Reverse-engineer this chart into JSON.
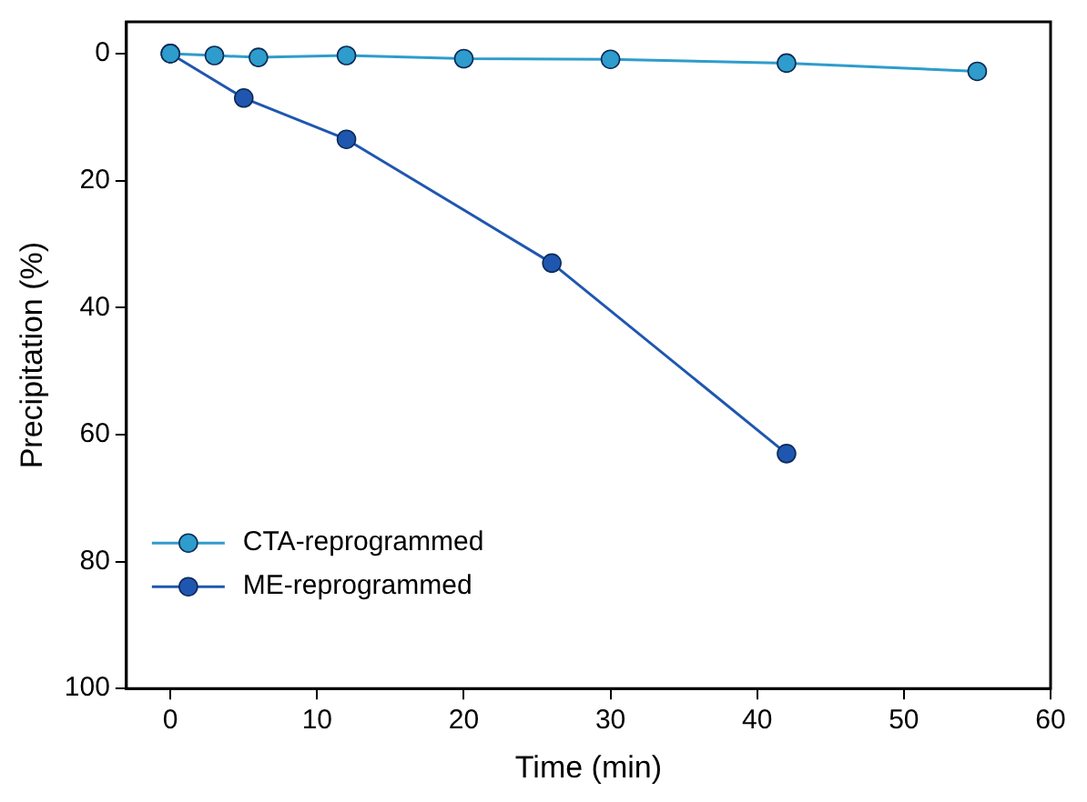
{
  "chart_data": {
    "type": "line",
    "xlabel": "Time (min)",
    "ylabel": "Precipitation (%)",
    "xlim": [
      -3,
      60
    ],
    "xticks": [
      0,
      10,
      20,
      30,
      40,
      50,
      60
    ],
    "ylim": [
      100,
      -5
    ],
    "yticks": [
      0,
      20,
      40,
      60,
      80,
      100
    ],
    "grid": false,
    "legend": "bottom left",
    "marker": "circle",
    "line_style": "solid",
    "series": [
      {
        "name": "CTA-reprogrammed",
        "color": "#2e9ccc",
        "x": [
          0,
          3,
          6,
          12,
          20,
          30,
          42,
          55
        ],
        "values": [
          0,
          0.3,
          0.6,
          0.3,
          0.8,
          0.9,
          1.5,
          2.8
        ]
      },
      {
        "name": "ME-reprogrammed",
        "color": "#1f57b0",
        "x": [
          0,
          5,
          12,
          26,
          42
        ],
        "values": [
          0,
          7,
          13.5,
          33,
          63
        ]
      }
    ]
  }
}
